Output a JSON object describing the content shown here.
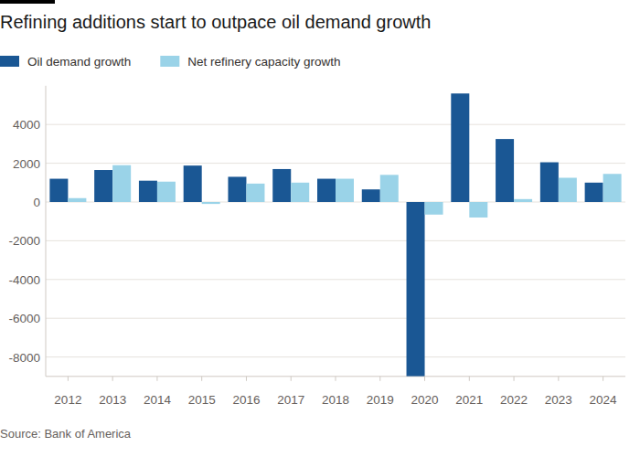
{
  "chart_data": {
    "type": "bar",
    "title": "Refining additions start to outpace oil demand growth",
    "source": "Source: Bank of America",
    "categories": [
      "2012",
      "2013",
      "2014",
      "2015",
      "2016",
      "2017",
      "2018",
      "2019",
      "2020",
      "2021",
      "2022",
      "2023",
      "2024"
    ],
    "series": [
      {
        "name": "Oil demand growth",
        "color": "#1a5794",
        "values": [
          1200,
          1650,
          1100,
          1880,
          1300,
          1700,
          1200,
          650,
          -9000,
          5600,
          3250,
          2050,
          1000
        ]
      },
      {
        "name": "Net refinery capacity growth",
        "color": "#9ad3e8",
        "values": [
          200,
          1900,
          1050,
          -100,
          950,
          1000,
          1200,
          1400,
          -650,
          -800,
          150,
          1250,
          1450
        ]
      }
    ],
    "ylim": [
      -9000,
      6000
    ],
    "yticks": [
      -8000,
      -6000,
      -4000,
      -2000,
      0,
      2000,
      4000
    ],
    "grid": true,
    "legend": "top-left"
  }
}
